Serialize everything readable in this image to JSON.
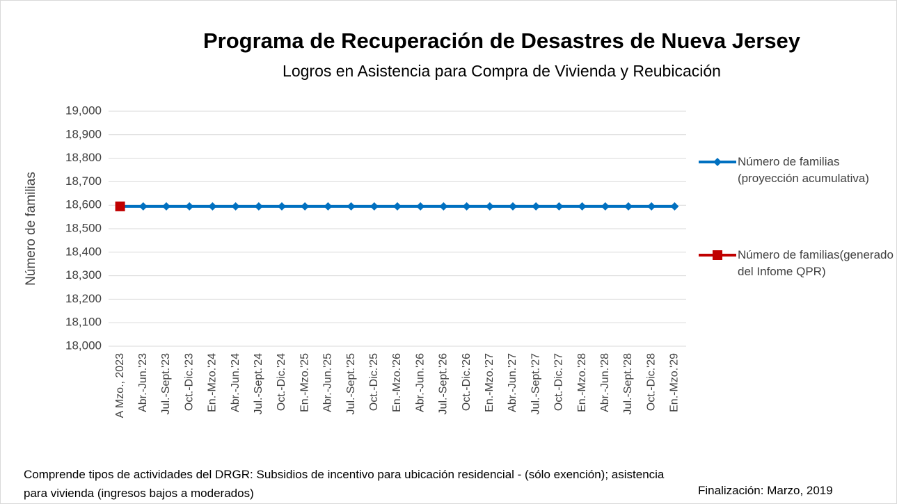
{
  "chart_data": {
    "type": "line",
    "title": "Programa de Recuperación de Desastres de Nueva Jersey",
    "subtitle": "Logros en Asistencia para Compra de Vivienda y Reubicación",
    "y_label": "Número de familias",
    "categories": [
      "A Mzo., 2023",
      "Abr.-Jun.'23",
      "Jul.-Sept.'23",
      "Oct.-Dic.'23",
      "En.-Mzo.'24",
      "Abr.-Jun.'24",
      "Jul.-Sept.'24",
      "Oct.-Dic.'24",
      "En.-Mzo.'25",
      "Abr.-Jun.'25",
      "Jul.-Sept.'25",
      "Oct.-Dic.'25",
      "En.-Mzo.'26",
      "Abr.-Jun.'26",
      "Jul.-Sept.'26",
      "Oct.-Dic.'26",
      "En.-Mzo.'27",
      "Abr.-Jun.'27",
      "Jul.-Sept.'27",
      "Oct.-Dic.'27",
      "En.-Mzo.'28",
      "Abr.-Jun.'28",
      "Jul.-Sept.'28",
      "Oct.-Dic.'28",
      "En.-Mzo.'29"
    ],
    "series": [
      {
        "name": "Número de familias (proyección acumulativa)",
        "color": "#0070c0",
        "marker": "diamond",
        "values": [
          18595,
          18595,
          18595,
          18595,
          18595,
          18595,
          18595,
          18595,
          18595,
          18595,
          18595,
          18595,
          18595,
          18595,
          18595,
          18595,
          18595,
          18595,
          18595,
          18595,
          18595,
          18595,
          18595,
          18595,
          18595
        ]
      },
      {
        "name": "Número de familias(generado del Infome QPR)",
        "color": "#c00000",
        "marker": "square",
        "values": [
          18595,
          null,
          null,
          null,
          null,
          null,
          null,
          null,
          null,
          null,
          null,
          null,
          null,
          null,
          null,
          null,
          null,
          null,
          null,
          null,
          null,
          null,
          null,
          null,
          null
        ]
      }
    ],
    "ylim": [
      18000,
      19000
    ],
    "yticks": [
      {
        "value": 18000,
        "label": "18,000"
      },
      {
        "value": 18100,
        "label": "18,100"
      },
      {
        "value": 18200,
        "label": "18,200"
      },
      {
        "value": 18300,
        "label": "18,300"
      },
      {
        "value": 18400,
        "label": "18,400"
      },
      {
        "value": 18500,
        "label": "18,500"
      },
      {
        "value": 18600,
        "label": "18,600"
      },
      {
        "value": 18700,
        "label": "18,700"
      },
      {
        "value": 18800,
        "label": "18,800"
      },
      {
        "value": 18900,
        "label": "18,900"
      },
      {
        "value": 19000,
        "label": "19,000"
      }
    ],
    "grid": true,
    "legend": "right",
    "notes": [
      "Comprende tipos de actividades del DRGR: Subsidios de incentivo para ubicación residencial - (sólo exención); asistencia para vivienda (ingresos bajos a moderados)",
      "Finalización: Marzo, 2019"
    ]
  }
}
